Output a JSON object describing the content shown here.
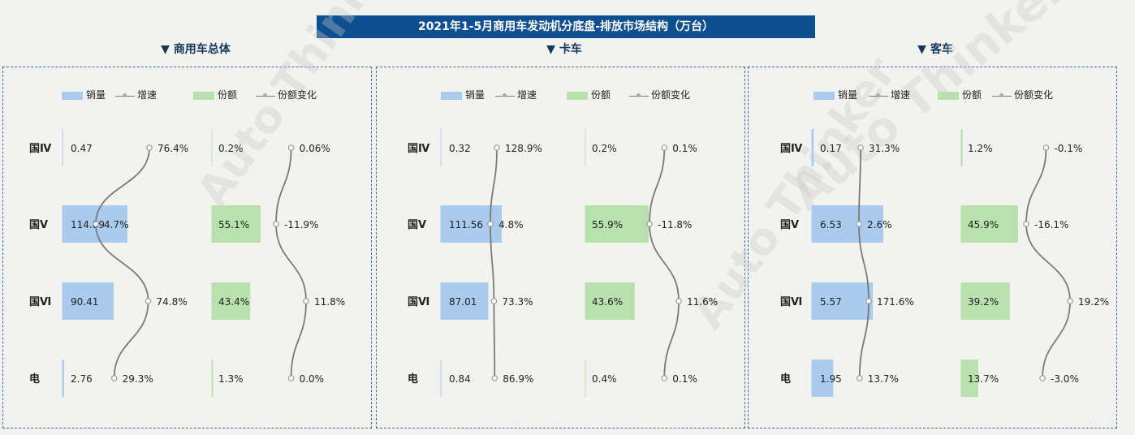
{
  "title": "2021年1-5月商用车发动机分底盘-排放市场结构（万台）",
  "legend": {
    "sales": "销量",
    "growth": "增速",
    "share": "份额",
    "share_change": "份额变化"
  },
  "colors": {
    "sales": "#a9cbee",
    "share": "#b9e1ad",
    "line": "#7a7a7a"
  },
  "watermark": "Auto Thinker",
  "categories": [
    "国Ⅳ",
    "国Ⅴ",
    "国Ⅵ",
    "电"
  ],
  "chart_data": [
    {
      "type": "bar",
      "title": "▼ 商用车总体",
      "categories": [
        "国Ⅳ",
        "国Ⅴ",
        "国Ⅵ",
        "电"
      ],
      "series": [
        {
          "name": "销量",
          "values": [
            0.47,
            114.89,
            90.41,
            2.76
          ],
          "labels": [
            "0.47",
            "114.89",
            "90.41",
            "2.76"
          ]
        },
        {
          "name": "增速",
          "values": [
            76.4,
            4.7,
            74.8,
            29.3
          ],
          "labels": [
            "76.4%",
            "4.7%",
            "74.8%",
            "29.3%"
          ]
        },
        {
          "name": "份额",
          "values": [
            0.2,
            55.1,
            43.4,
            1.3
          ],
          "labels": [
            "0.2%",
            "55.1%",
            "43.4%",
            "1.3%"
          ]
        },
        {
          "name": "份额变化",
          "values": [
            0.06,
            -11.9,
            11.8,
            0.0
          ],
          "labels": [
            "0.06%",
            "-11.9%",
            "11.8%",
            "0.0%"
          ]
        }
      ]
    },
    {
      "type": "bar",
      "title": "▼ 卡车",
      "categories": [
        "国Ⅳ",
        "国Ⅴ",
        "国Ⅵ",
        "电"
      ],
      "series": [
        {
          "name": "销量",
          "values": [
            0.32,
            111.56,
            87.01,
            0.84
          ],
          "labels": [
            "0.32",
            "111.56",
            "87.01",
            "0.84"
          ]
        },
        {
          "name": "增速",
          "values": [
            128.9,
            4.8,
            73.3,
            86.9
          ],
          "labels": [
            "128.9%",
            "4.8%",
            "73.3%",
            "86.9%"
          ]
        },
        {
          "name": "份额",
          "values": [
            0.2,
            55.9,
            43.6,
            0.4
          ],
          "labels": [
            "0.2%",
            "55.9%",
            "43.6%",
            "0.4%"
          ]
        },
        {
          "name": "份额变化",
          "values": [
            0.1,
            -11.8,
            11.6,
            0.1
          ],
          "labels": [
            "0.1%",
            "-11.8%",
            "11.6%",
            "0.1%"
          ]
        }
      ]
    },
    {
      "type": "bar",
      "title": "▼ 客车",
      "categories": [
        "国Ⅳ",
        "国Ⅴ",
        "国Ⅵ",
        "电"
      ],
      "series": [
        {
          "name": "销量",
          "values": [
            0.17,
            6.53,
            5.57,
            1.95
          ],
          "labels": [
            "0.17",
            "6.53",
            "5.57",
            "1.95"
          ]
        },
        {
          "name": "增速",
          "values": [
            31.3,
            2.6,
            171.6,
            13.7
          ],
          "labels": [
            "31.3%",
            "2.6%",
            "171.6%",
            "13.7%"
          ]
        },
        {
          "name": "份额",
          "values": [
            1.2,
            45.9,
            39.2,
            13.7
          ],
          "labels": [
            "1.2%",
            "45.9%",
            "39.2%",
            "13.7%"
          ]
        },
        {
          "name": "份额变化",
          "values": [
            -0.1,
            -16.1,
            19.2,
            -3.0
          ],
          "labels": [
            "-0.1%",
            "-16.1%",
            "19.2%",
            "-3.0%"
          ]
        }
      ]
    }
  ]
}
